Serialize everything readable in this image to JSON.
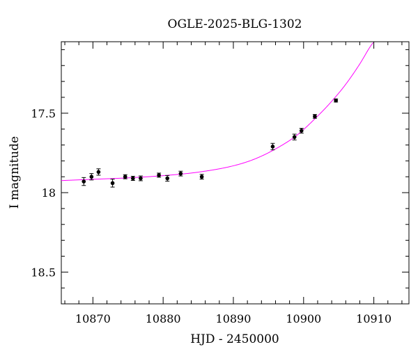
{
  "chart_data": {
    "type": "scatter",
    "title": "OGLE-2025-BLG-1302",
    "xlabel": "HJD - 2450000",
    "ylabel": "I magnitude",
    "xlim": [
      10865.5,
      10915.0
    ],
    "ylim": [
      18.7,
      17.05
    ],
    "y_inverted": true,
    "x_ticks": [
      10870,
      10880,
      10890,
      10900,
      10910
    ],
    "x_tick_labels": [
      "10870",
      "10880",
      "10890",
      "10900",
      "10910"
    ],
    "y_ticks": [
      17.5,
      18,
      18.5
    ],
    "y_tick_labels": [
      "17.5",
      "18",
      "18.5"
    ],
    "grid": false,
    "series": [
      {
        "kind": "points_with_errorbars",
        "color": "#000000",
        "points": [
          {
            "x": 10868.7,
            "y": 17.93,
            "err": 0.025
          },
          {
            "x": 10869.8,
            "y": 17.9,
            "err": 0.02
          },
          {
            "x": 10870.8,
            "y": 17.87,
            "err": 0.02
          },
          {
            "x": 10872.8,
            "y": 17.94,
            "err": 0.025
          },
          {
            "x": 10874.6,
            "y": 17.9,
            "err": 0.013
          },
          {
            "x": 10875.7,
            "y": 17.91,
            "err": 0.013
          },
          {
            "x": 10876.8,
            "y": 17.91,
            "err": 0.015
          },
          {
            "x": 10879.4,
            "y": 17.89,
            "err": 0.013
          },
          {
            "x": 10880.6,
            "y": 17.91,
            "err": 0.018
          },
          {
            "x": 10882.5,
            "y": 17.88,
            "err": 0.015
          },
          {
            "x": 10885.5,
            "y": 17.9,
            "err": 0.015
          },
          {
            "x": 10895.6,
            "y": 17.71,
            "err": 0.02
          },
          {
            "x": 10898.7,
            "y": 17.65,
            "err": 0.018
          },
          {
            "x": 10899.7,
            "y": 17.61,
            "err": 0.015
          },
          {
            "x": 10901.6,
            "y": 17.52,
            "err": 0.012
          },
          {
            "x": 10904.6,
            "y": 17.42,
            "err": 0.01
          }
        ]
      },
      {
        "kind": "model_curve",
        "color": "#ff00ff",
        "points": [
          {
            "x": 10865.5,
            "y": 17.924
          },
          {
            "x": 10870.0,
            "y": 17.916
          },
          {
            "x": 10875.0,
            "y": 17.907
          },
          {
            "x": 10880.0,
            "y": 17.893
          },
          {
            "x": 10885.0,
            "y": 17.871
          },
          {
            "x": 10890.0,
            "y": 17.831
          },
          {
            "x": 10893.0,
            "y": 17.789
          },
          {
            "x": 10896.0,
            "y": 17.725
          },
          {
            "x": 10899.0,
            "y": 17.64
          },
          {
            "x": 10902.0,
            "y": 17.518
          },
          {
            "x": 10904.0,
            "y": 17.425
          },
          {
            "x": 10906.0,
            "y": 17.318
          },
          {
            "x": 10908.0,
            "y": 17.19
          },
          {
            "x": 10909.5,
            "y": 17.08
          },
          {
            "x": 10910.0,
            "y": 17.05
          }
        ]
      }
    ]
  }
}
